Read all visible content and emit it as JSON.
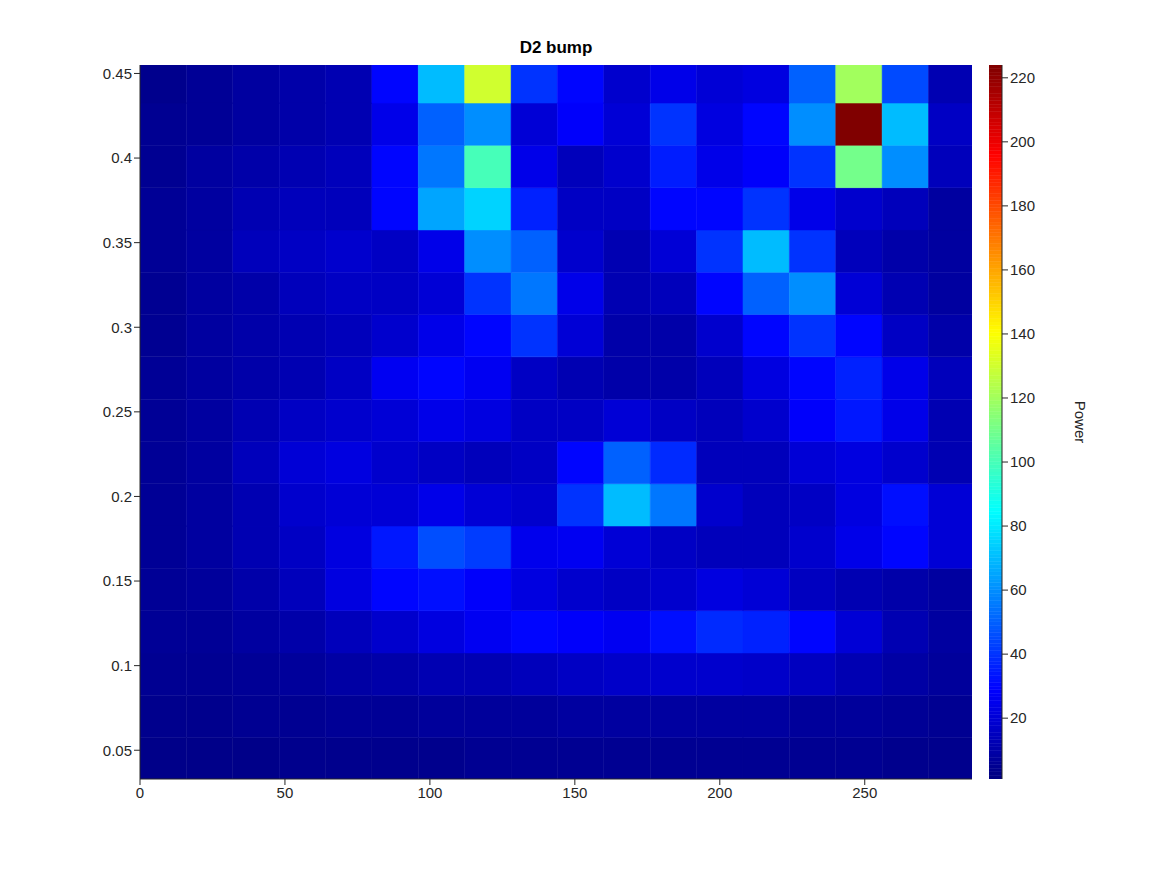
{
  "chart_data": {
    "type": "heatmap",
    "title": "D2 bump",
    "x": [
      8,
      24,
      40,
      56,
      72,
      88,
      104,
      120,
      136,
      152,
      168,
      184,
      200,
      216,
      232,
      248,
      264,
      280
    ],
    "y": [
      0.045,
      0.07,
      0.095,
      0.12,
      0.145,
      0.17,
      0.195,
      0.22,
      0.245,
      0.27,
      0.295,
      0.32,
      0.345,
      0.37,
      0.395,
      0.42,
      0.445
    ],
    "z": [
      [
        3,
        3,
        3,
        4,
        4,
        4,
        4,
        5,
        5,
        5,
        5,
        5,
        5,
        5,
        5,
        5,
        4,
        4
      ],
      [
        4,
        4,
        5,
        5,
        6,
        6,
        7,
        7,
        7,
        8,
        8,
        8,
        8,
        8,
        7,
        7,
        6,
        5
      ],
      [
        5,
        5,
        6,
        7,
        9,
        10,
        12,
        12,
        14,
        16,
        17,
        18,
        18,
        17,
        15,
        12,
        9,
        7
      ],
      [
        6,
        6,
        8,
        10,
        14,
        18,
        22,
        26,
        30,
        28,
        26,
        32,
        38,
        36,
        30,
        20,
        12,
        8
      ],
      [
        6,
        7,
        10,
        14,
        22,
        30,
        32,
        28,
        22,
        18,
        16,
        18,
        22,
        20,
        15,
        12,
        10,
        8
      ],
      [
        6,
        8,
        12,
        16,
        22,
        34,
        46,
        42,
        25,
        26,
        20,
        16,
        14,
        14,
        18,
        24,
        30,
        20
      ],
      [
        6,
        8,
        12,
        18,
        20,
        20,
        24,
        20,
        18,
        40,
        70,
        55,
        18,
        14,
        16,
        22,
        32,
        20
      ],
      [
        6,
        8,
        14,
        20,
        22,
        18,
        16,
        14,
        16,
        30,
        50,
        38,
        14,
        14,
        20,
        22,
        18,
        12
      ],
      [
        6,
        8,
        12,
        16,
        18,
        20,
        24,
        22,
        16,
        16,
        20,
        16,
        14,
        18,
        28,
        34,
        24,
        12
      ],
      [
        6,
        8,
        10,
        12,
        16,
        26,
        30,
        26,
        16,
        12,
        10,
        10,
        14,
        22,
        30,
        36,
        24,
        14
      ],
      [
        5,
        8,
        10,
        12,
        14,
        18,
        24,
        30,
        40,
        20,
        10,
        10,
        18,
        30,
        40,
        30,
        16,
        10
      ],
      [
        5,
        8,
        10,
        14,
        16,
        16,
        20,
        40,
        55,
        24,
        12,
        14,
        30,
        50,
        60,
        20,
        12,
        8
      ],
      [
        6,
        8,
        14,
        16,
        18,
        16,
        24,
        60,
        50,
        18,
        12,
        20,
        40,
        70,
        40,
        14,
        10,
        8
      ],
      [
        6,
        8,
        12,
        14,
        14,
        30,
        65,
        75,
        36,
        16,
        16,
        30,
        30,
        40,
        24,
        18,
        14,
        8
      ],
      [
        5,
        8,
        10,
        12,
        14,
        30,
        55,
        100,
        24,
        14,
        18,
        35,
        24,
        28,
        40,
        110,
        60,
        14
      ],
      [
        5,
        6,
        8,
        10,
        12,
        24,
        50,
        60,
        20,
        28,
        20,
        40,
        22,
        30,
        60,
        224,
        70,
        16
      ],
      [
        4,
        6,
        8,
        10,
        12,
        30,
        70,
        130,
        40,
        30,
        18,
        24,
        20,
        22,
        50,
        120,
        45,
        12
      ]
    ],
    "xlim": [
      0,
      287
    ],
    "xticks": [
      0,
      50,
      100,
      150,
      200,
      250
    ],
    "ylim": [
      0.033,
      0.455
    ],
    "yticks": [
      0.05,
      0.1,
      0.15,
      0.2,
      0.25,
      0.3,
      0.35,
      0.4,
      0.45
    ],
    "colorbar": {
      "label": "Power",
      "lim": [
        1,
        224
      ],
      "ticks": [
        20,
        40,
        60,
        80,
        100,
        120,
        140,
        160,
        180,
        200,
        220
      ]
    }
  }
}
